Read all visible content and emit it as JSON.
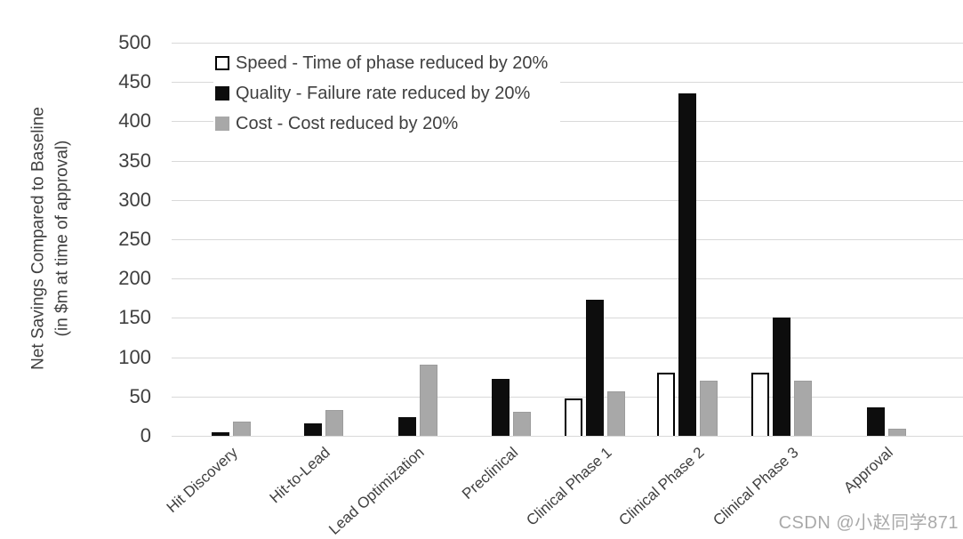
{
  "watermark": {
    "text": "CSDN @小赵同学871"
  },
  "colors": {
    "text": "#3f3f3f",
    "gridline": "#d9d9d9",
    "bar_speed_fill": "#ffffff",
    "bar_speed_stroke": "#000000",
    "bar_quality": "#0d0d0d",
    "bar_cost": "#a8a8a8",
    "watermark": "#a9a9a9"
  },
  "chart_data": {
    "type": "bar",
    "title": "",
    "ylabel": "Net Savings Compared to Baseline (in $m at time of approval)",
    "ylabel_lines": [
      "Net Savings Compared to Baseline",
      "(in $m at time of approval)"
    ],
    "xlabel": "",
    "ylim": [
      0,
      500
    ],
    "yticks": [
      0,
      50,
      100,
      150,
      200,
      250,
      300,
      350,
      400,
      450,
      500
    ],
    "grid": true,
    "legend_position": "top-left-inside",
    "categories": [
      "Hit Discovery",
      "Hit-to-Lead",
      "Lead Optimization",
      "Preclinical",
      "Clinical Phase 1",
      "Clinical Phase 2",
      "Clinical Phase 3",
      "Approval"
    ],
    "series": [
      {
        "name": "Speed - Time of phase reduced by 20%",
        "key": "speed",
        "values": [
          0,
          0,
          0,
          0,
          48,
          80,
          80,
          0
        ]
      },
      {
        "name": "Quality - Failure rate reduced by 20%",
        "key": "quality",
        "values": [
          5,
          16,
          24,
          72,
          173,
          435,
          150,
          36
        ]
      },
      {
        "name": "Cost - Cost reduced by 20%",
        "key": "cost",
        "values": [
          18,
          33,
          90,
          30,
          57,
          70,
          70,
          9
        ]
      }
    ]
  }
}
